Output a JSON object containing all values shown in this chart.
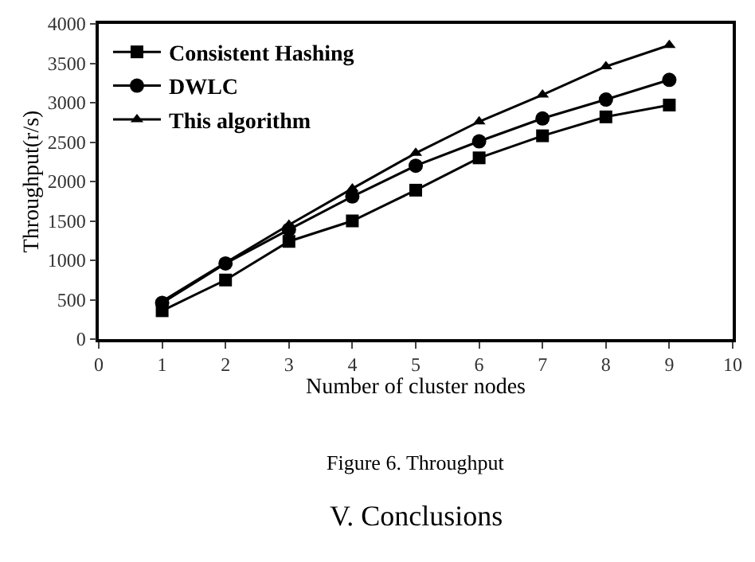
{
  "chart_data": {
    "type": "line",
    "xlabel": "Number of cluster nodes",
    "ylabel": "Throughput(r/s)",
    "x": [
      1,
      2,
      3,
      4,
      5,
      6,
      7,
      8,
      9
    ],
    "series": [
      {
        "name": "Consistent Hashing",
        "color": "#000000",
        "marker": "square",
        "values": [
          360,
          750,
          1240,
          1500,
          1890,
          2300,
          2580,
          2820,
          2970
        ]
      },
      {
        "name": "DWLC",
        "color": "#000000",
        "marker": "circle",
        "values": [
          460,
          960,
          1390,
          1810,
          2200,
          2510,
          2800,
          3040,
          3290
        ]
      },
      {
        "name": "This algorithm",
        "color": "#000000",
        "marker": "triangle",
        "values": [
          480,
          970,
          1450,
          1910,
          2360,
          2760,
          3100,
          3460,
          3730
        ]
      }
    ],
    "xlim": [
      0,
      10
    ],
    "xticks": [
      0,
      1,
      2,
      3,
      4,
      5,
      6,
      7,
      8,
      9,
      10
    ],
    "ylim": [
      0,
      4000
    ],
    "yticks": [
      0,
      500,
      1000,
      1500,
      2000,
      2500,
      3000,
      3500,
      4000
    ],
    "legend": "top left",
    "line_style": "solid",
    "annotations": [
      "Figure 6. Throughput",
      "V. Conclusions"
    ]
  }
}
